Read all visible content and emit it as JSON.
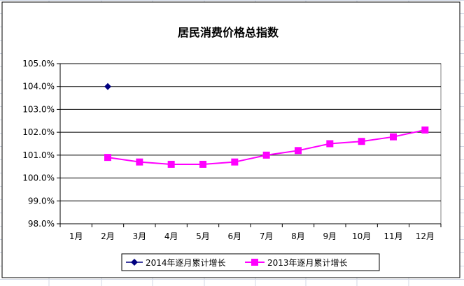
{
  "chart_data": {
    "type": "line",
    "title": "居民消费价格总指数",
    "categories": [
      "1月",
      "2月",
      "3月",
      "4月",
      "5月",
      "6月",
      "7月",
      "8月",
      "9月",
      "10月",
      "11月",
      "12月"
    ],
    "y_ticks": [
      "98.0%",
      "99.0%",
      "100.0%",
      "101.0%",
      "102.0%",
      "103.0%",
      "104.0%",
      "105.0%"
    ],
    "ylim": [
      98.0,
      105.0
    ],
    "y_unit": "%",
    "grid": true,
    "legend_position": "bottom",
    "series": [
      {
        "name": "2014年逐月累计增长",
        "color": "#000080",
        "marker": "diamond",
        "values": [
          null,
          104.0,
          null,
          null,
          null,
          null,
          null,
          null,
          null,
          null,
          null,
          null
        ]
      },
      {
        "name": "2013年逐月累计增长",
        "color": "#ff00ff",
        "marker": "square",
        "values": [
          null,
          100.9,
          100.7,
          100.6,
          100.6,
          100.7,
          101.0,
          101.2,
          101.5,
          101.6,
          101.8,
          102.1
        ]
      }
    ]
  }
}
